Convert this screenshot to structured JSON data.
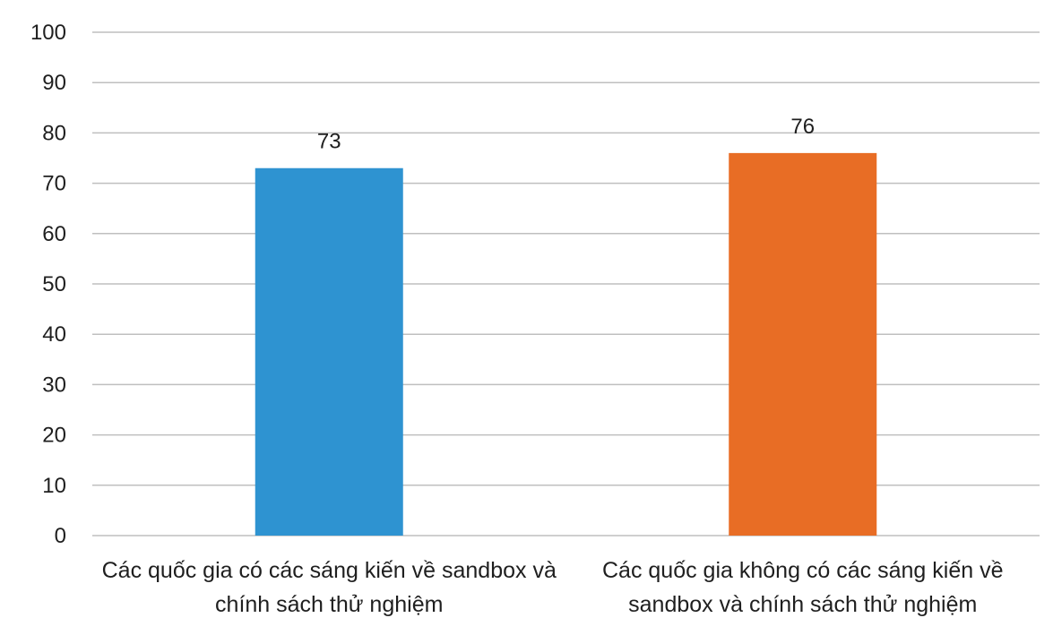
{
  "chart_data": {
    "type": "bar",
    "categories": [
      [
        "Các quốc gia có các sáng kiến về sandbox và",
        "chính sách thử nghiệm"
      ],
      [
        "Các quốc gia không có các sáng kiến về",
        "sandbox và chính sách thử nghiệm"
      ]
    ],
    "values": [
      73,
      76
    ],
    "data_labels": [
      "73",
      "76"
    ],
    "colors": [
      "#2e93d1",
      "#e86d25"
    ],
    "ylim": [
      0,
      100
    ],
    "yticks": [
      0,
      10,
      20,
      30,
      40,
      50,
      60,
      70,
      80,
      90,
      100
    ],
    "grid": true,
    "legend": "none",
    "title": "",
    "xlabel": "",
    "ylabel": ""
  }
}
